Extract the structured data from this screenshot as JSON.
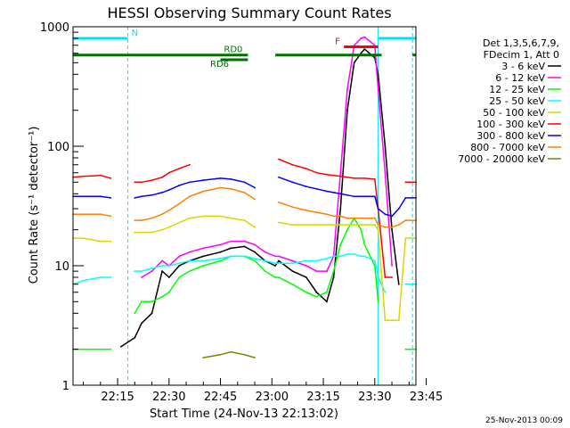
{
  "chart_data": {
    "type": "line",
    "title": "HESSI Observing Summary Count Rates",
    "xlabel": "Start Time (24-Nov-13 22:13:02)",
    "ylabel": "Count Rate (s⁻¹ detector⁻¹)",
    "yscale": "log",
    "ylim": [
      1,
      1000
    ],
    "xlim_minutes": [
      2,
      102
    ],
    "x_ticks": [
      {
        "label": "22:15",
        "m": 15
      },
      {
        "label": "22:30",
        "m": 30
      },
      {
        "label": "22:45",
        "m": 45
      },
      {
        "label": "23:00",
        "m": 60
      },
      {
        "label": "23:15",
        "m": 75
      },
      {
        "label": "23:30",
        "m": 90
      },
      {
        "label": "23:45",
        "m": 105
      }
    ],
    "y_ticks": [
      {
        "label": "1",
        "v": 1
      },
      {
        "label": "10",
        "v": 10
      },
      {
        "label": "100",
        "v": 100
      },
      {
        "label": "1000",
        "v": 1000
      }
    ],
    "grid": false,
    "legend_position": "right",
    "legend_header": [
      "Det 1,3,5,6,7,9,",
      "FDecim 1, Att 0"
    ],
    "footer_date": "25-Nov-2013 00:09",
    "series": [
      {
        "name": "3 - 6 keV",
        "color": "#000000",
        "x": [
          2,
          5,
          10,
          13,
          16,
          20,
          22,
          25,
          28,
          30,
          33,
          36,
          40,
          45,
          48,
          52,
          55,
          58,
          61,
          62,
          66,
          70,
          73,
          76,
          78,
          80,
          82,
          84,
          86,
          87,
          90,
          91,
          93,
          95,
          97,
          99,
          102
        ],
        "y": [
          null,
          null,
          null,
          null,
          2.1,
          2.5,
          3.3,
          4,
          9,
          8,
          10,
          11,
          12,
          13,
          14,
          14.5,
          13,
          11,
          10,
          11,
          9,
          8,
          6,
          5,
          8,
          30,
          200,
          500,
          600,
          650,
          550,
          400,
          100,
          20,
          7,
          null,
          null
        ]
      },
      {
        "name": "6 - 12 keV",
        "color": "#ff00ff",
        "x": [
          2,
          5,
          10,
          13,
          16,
          20,
          22,
          25,
          28,
          30,
          33,
          36,
          40,
          45,
          48,
          52,
          55,
          58,
          61,
          62,
          66,
          70,
          73,
          76,
          78,
          80,
          82,
          84,
          86,
          87,
          90,
          91,
          93,
          95,
          97,
          99,
          102
        ],
        "y": [
          null,
          null,
          null,
          null,
          null,
          null,
          8,
          9,
          11,
          10,
          12,
          13,
          14,
          15,
          16,
          16,
          15,
          13,
          12,
          12,
          11,
          10,
          9,
          9,
          12,
          60,
          300,
          700,
          800,
          820,
          700,
          300,
          60,
          10,
          null,
          null,
          null
        ]
      },
      {
        "name": "12 - 25 keV",
        "color": "#00ff00",
        "x": [
          2,
          5,
          10,
          13,
          16,
          20,
          22,
          25,
          28,
          30,
          33,
          36,
          40,
          45,
          48,
          52,
          55,
          58,
          61,
          62,
          66,
          70,
          73,
          76,
          78,
          80,
          82,
          84,
          86,
          87,
          90,
          91,
          93,
          95,
          97,
          99,
          102
        ],
        "y": [
          2,
          2,
          2,
          2,
          null,
          4,
          5,
          5,
          5.5,
          6,
          8,
          9,
          10,
          11,
          12,
          12,
          11,
          9,
          8,
          8,
          7,
          6,
          5.5,
          6,
          9,
          15,
          20,
          25,
          20,
          15,
          10,
          5,
          null,
          null,
          null,
          2,
          2
        ]
      },
      {
        "name": "25 - 50 keV",
        "color": "#00ffff",
        "x": [
          2,
          5,
          10,
          13,
          16,
          20,
          22,
          25,
          28,
          30,
          33,
          36,
          40,
          45,
          48,
          52,
          55,
          58,
          61,
          62,
          66,
          70,
          73,
          76,
          78,
          80,
          82,
          84,
          86,
          87,
          90,
          91,
          93,
          95,
          97,
          99,
          102
        ],
        "y": [
          7,
          7.5,
          8,
          8,
          null,
          9,
          9,
          9.5,
          10,
          10,
          10.5,
          11,
          11,
          11.5,
          12,
          12,
          11.5,
          11,
          10.5,
          10.5,
          10.5,
          11,
          11,
          11.5,
          12,
          12,
          12.5,
          12.5,
          12,
          12,
          11,
          8,
          6,
          null,
          null,
          7,
          7
        ]
      },
      {
        "name": "50 - 100 keV",
        "color": "#d8d800",
        "x": [
          2,
          5,
          10,
          13,
          16,
          20,
          22,
          25,
          28,
          30,
          33,
          36,
          40,
          45,
          48,
          52,
          55,
          58,
          61,
          62,
          66,
          70,
          73,
          76,
          78,
          80,
          82,
          84,
          86,
          87,
          90,
          91,
          93,
          95,
          97,
          99,
          102
        ],
        "y": [
          17,
          17,
          16,
          16,
          null,
          19,
          19,
          19,
          20,
          21,
          23,
          25,
          26,
          26,
          25,
          24,
          21,
          null,
          null,
          23,
          22,
          22,
          22,
          22,
          22,
          22,
          22,
          22,
          22,
          22,
          22,
          20,
          3.5,
          3.5,
          3.5,
          17,
          17
        ]
      },
      {
        "name": "100 - 300 keV",
        "color": "#ff0000",
        "x": [
          2,
          5,
          10,
          13,
          16,
          20,
          22,
          25,
          28,
          30,
          33,
          36,
          40,
          45,
          48,
          52,
          55,
          58,
          61,
          62,
          66,
          70,
          73,
          76,
          78,
          80,
          82,
          84,
          86,
          87,
          90,
          91,
          93,
          95,
          97,
          99,
          102
        ],
        "y": [
          55,
          56,
          57,
          54,
          null,
          50,
          50,
          52,
          55,
          60,
          65,
          70,
          null,
          null,
          null,
          null,
          null,
          null,
          null,
          78,
          70,
          65,
          60,
          58,
          57,
          56,
          55,
          54,
          54,
          54,
          53,
          30,
          8,
          8,
          null,
          50,
          50
        ]
      },
      {
        "name": "300 - 800 keV",
        "color": "#0000ff",
        "x": [
          2,
          5,
          10,
          13,
          16,
          20,
          22,
          25,
          28,
          30,
          33,
          36,
          40,
          45,
          48,
          52,
          55,
          58,
          61,
          62,
          66,
          70,
          73,
          76,
          78,
          80,
          82,
          84,
          86,
          87,
          90,
          91,
          93,
          95,
          97,
          99,
          102
        ],
        "y": [
          38,
          38,
          38,
          37,
          null,
          37,
          38,
          39,
          41,
          43,
          47,
          50,
          52,
          54,
          53,
          50,
          45,
          null,
          null,
          55,
          50,
          46,
          44,
          42,
          41,
          40,
          39,
          38,
          38,
          38,
          38,
          30,
          27,
          26,
          30,
          37,
          37
        ]
      },
      {
        "name": "800 - 7000 keV",
        "color": "#ff8000",
        "x": [
          2,
          5,
          10,
          13,
          16,
          20,
          22,
          25,
          28,
          30,
          33,
          36,
          40,
          45,
          48,
          52,
          55,
          58,
          61,
          62,
          66,
          70,
          73,
          76,
          78,
          80,
          82,
          84,
          86,
          87,
          90,
          91,
          93,
          95,
          97,
          99,
          102
        ],
        "y": [
          27,
          27,
          27,
          26,
          null,
          24,
          24,
          25,
          27,
          29,
          33,
          38,
          42,
          45,
          44,
          41,
          36,
          null,
          null,
          34,
          31,
          29,
          28,
          27,
          26,
          26,
          25,
          25,
          25,
          25,
          25,
          22,
          21,
          21,
          22,
          24,
          24
        ]
      },
      {
        "name": "7000 - 20000 keV",
        "color": "#808000",
        "x": [
          2,
          5,
          10,
          13,
          16,
          20,
          22,
          25,
          28,
          30,
          33,
          36,
          40,
          45,
          48,
          52,
          55,
          58,
          61,
          62,
          66,
          70,
          73,
          76,
          78,
          80,
          82,
          84,
          86,
          87,
          90,
          91,
          93,
          95,
          97,
          99,
          102
        ],
        "y": [
          null,
          null,
          null,
          null,
          null,
          null,
          null,
          null,
          null,
          null,
          null,
          null,
          1.7,
          1.8,
          1.9,
          1.8,
          1.7,
          null,
          null,
          null,
          null,
          null,
          null,
          null,
          null,
          null,
          null,
          null,
          null,
          null,
          null,
          null,
          null,
          null,
          null,
          null,
          null
        ]
      }
    ],
    "flags": [
      {
        "label": "N",
        "color": "#00e0ff",
        "segments": [
          [
            2,
            18
          ],
          [
            91,
            102
          ]
        ],
        "level": 800
      },
      {
        "label": "F",
        "color": "#ff0000",
        "segments": [
          [
            81,
            91
          ]
        ],
        "level": 680
      },
      {
        "label": "RD0",
        "color": "#007000",
        "segments": [
          [
            2,
            53
          ],
          [
            61,
            92
          ],
          [
            101,
            102
          ]
        ],
        "level": 580
      },
      {
        "label": "RD6",
        "color": "#007000",
        "segments": [
          [
            45,
            53
          ]
        ],
        "level": 530
      }
    ],
    "vertical_markers": [
      {
        "m": 18,
        "color": "#00e0ff",
        "style": "dashed"
      },
      {
        "m": 91,
        "color": "#00e0ff",
        "style": "solid"
      },
      {
        "m": 101,
        "color": "#00e0ff",
        "style": "dashed"
      }
    ]
  }
}
